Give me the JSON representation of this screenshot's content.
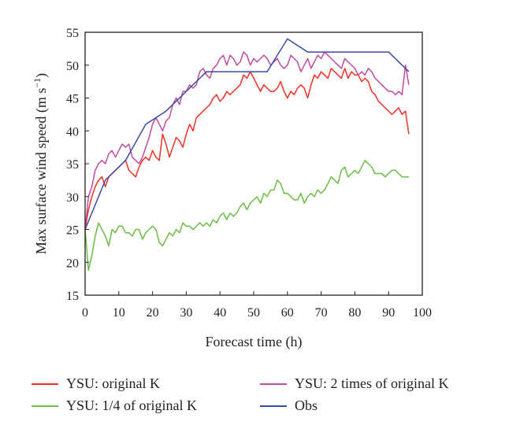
{
  "chart_data": {
    "type": "line",
    "xlabel": "Forecast time (h)",
    "ylabel": "Max surface wind speed (m s",
    "ylabel_sup": "−1",
    "ylabel_close": ")",
    "xlim": [
      0,
      100
    ],
    "ylim": [
      15,
      55
    ],
    "x_ticks": [
      "0",
      "10",
      "20",
      "30",
      "40",
      "50",
      "60",
      "70",
      "80",
      "90",
      "100"
    ],
    "y_ticks": [
      "15",
      "20",
      "25",
      "30",
      "35",
      "40",
      "45",
      "50",
      "55"
    ],
    "grid": false,
    "legend_position": "bottom",
    "series": [
      {
        "name": "YSU: original K",
        "color": "#ee3124",
        "x": [
          0,
          1,
          2,
          3,
          4,
          5,
          6,
          7,
          8,
          9,
          10,
          11,
          12,
          13,
          14,
          15,
          16,
          17,
          18,
          19,
          20,
          21,
          22,
          23,
          24,
          25,
          26,
          27,
          28,
          29,
          30,
          31,
          32,
          33,
          34,
          35,
          36,
          37,
          38,
          39,
          40,
          41,
          42,
          43,
          44,
          45,
          46,
          47,
          48,
          49,
          50,
          51,
          52,
          53,
          54,
          55,
          56,
          57,
          58,
          59,
          60,
          61,
          62,
          63,
          64,
          65,
          66,
          67,
          68,
          69,
          70,
          71,
          72,
          73,
          74,
          75,
          76,
          77,
          78,
          79,
          80,
          81,
          82,
          83,
          84,
          85,
          86,
          87,
          88,
          89,
          90,
          91,
          92,
          93,
          94,
          95,
          96
        ],
        "y": [
          25,
          28,
          30,
          31.5,
          32.5,
          33,
          31.5,
          33,
          33.5,
          34,
          34.5,
          35,
          35.5,
          34,
          33.5,
          33,
          34.5,
          35.5,
          36,
          35.5,
          37,
          36,
          35.5,
          39.5,
          38,
          36,
          37.5,
          39,
          38.5,
          37.5,
          39.5,
          41,
          40,
          42,
          42.5,
          43,
          43.5,
          44,
          45,
          45.5,
          44.5,
          45,
          46,
          45.5,
          46,
          46.5,
          47,
          48.5,
          48,
          49,
          48,
          47,
          46,
          47,
          46.5,
          46,
          46,
          46.5,
          47.5,
          46,
          45,
          46,
          45.5,
          46.5,
          47,
          46.5,
          45,
          47,
          48.5,
          48,
          49,
          48.5,
          48,
          49.5,
          49,
          48.5,
          48,
          49.5,
          48,
          49,
          48.5,
          48.5,
          47.5,
          48,
          47.5,
          46,
          45.5,
          44.5,
          44,
          43.5,
          43,
          42.5,
          43,
          43.5,
          42.5,
          43,
          39.5
        ]
      },
      {
        "name": "YSU: 1/4 of original K",
        "color": "#6cbd45",
        "x": [
          0,
          1,
          2,
          3,
          4,
          5,
          6,
          7,
          8,
          9,
          10,
          11,
          12,
          13,
          14,
          15,
          16,
          17,
          18,
          19,
          20,
          21,
          22,
          23,
          24,
          25,
          26,
          27,
          28,
          29,
          30,
          31,
          32,
          33,
          34,
          35,
          36,
          37,
          38,
          39,
          40,
          41,
          42,
          43,
          44,
          45,
          46,
          47,
          48,
          49,
          50,
          51,
          52,
          53,
          54,
          55,
          56,
          57,
          58,
          59,
          60,
          61,
          62,
          63,
          64,
          65,
          66,
          67,
          68,
          69,
          70,
          71,
          72,
          73,
          74,
          75,
          76,
          77,
          78,
          79,
          80,
          81,
          82,
          83,
          84,
          85,
          86,
          87,
          88,
          89,
          90,
          91,
          92,
          93,
          94,
          95,
          96
        ],
        "y": [
          25,
          18.8,
          21,
          24,
          26,
          25,
          24,
          22.5,
          25,
          24.5,
          25.5,
          25.5,
          24.5,
          24.5,
          24,
          25,
          25,
          23.5,
          24.5,
          25,
          25.5,
          25,
          23,
          22.5,
          23.5,
          24.5,
          24,
          25,
          24.5,
          26,
          25.5,
          25.5,
          25,
          25.5,
          26,
          25.5,
          26,
          25.5,
          26.5,
          26,
          27,
          27.5,
          26.5,
          27.5,
          27,
          27.5,
          28.5,
          29,
          28,
          29,
          29.5,
          30,
          29,
          30.5,
          30,
          31,
          31,
          32.5,
          32,
          30.5,
          30.5,
          30,
          29.5,
          29.5,
          30.5,
          29,
          30,
          30.5,
          30,
          31,
          30.5,
          31,
          32,
          33,
          32.5,
          32,
          34,
          34.5,
          33,
          33.5,
          34,
          33.5,
          34.5,
          35.5,
          35,
          34.5,
          33.5,
          33.5,
          33.5,
          33,
          33.5,
          34,
          34,
          33.5,
          33,
          33,
          33
        ]
      },
      {
        "name": "YSU: 2 times of original K",
        "color": "#c34b9d",
        "x": [
          0,
          1,
          2,
          3,
          4,
          5,
          6,
          7,
          8,
          9,
          10,
          11,
          12,
          13,
          14,
          15,
          16,
          17,
          18,
          19,
          20,
          21,
          22,
          23,
          24,
          25,
          26,
          27,
          28,
          29,
          30,
          31,
          32,
          33,
          34,
          35,
          36,
          37,
          38,
          39,
          40,
          41,
          42,
          43,
          44,
          45,
          46,
          47,
          48,
          49,
          50,
          51,
          52,
          53,
          54,
          55,
          56,
          57,
          58,
          59,
          60,
          61,
          62,
          63,
          64,
          65,
          66,
          67,
          68,
          69,
          70,
          71,
          72,
          73,
          74,
          75,
          76,
          77,
          78,
          79,
          80,
          81,
          82,
          83,
          84,
          85,
          86,
          87,
          88,
          89,
          90,
          91,
          92,
          93,
          94,
          95,
          96
        ],
        "y": [
          25,
          30,
          31.5,
          34,
          35,
          35.5,
          35,
          36.5,
          37,
          36,
          37,
          38,
          37.5,
          38,
          36,
          35.5,
          35,
          36,
          37.5,
          39,
          41,
          42,
          41,
          40,
          41.5,
          42,
          44,
          45,
          44,
          46,
          46,
          47,
          46.5,
          47,
          49,
          49.5,
          48.5,
          48,
          49.5,
          50,
          51,
          51.5,
          50,
          51.5,
          51,
          50,
          50.5,
          52,
          51.5,
          50,
          51,
          50.5,
          51,
          51.5,
          51,
          50,
          50.5,
          51,
          50,
          49.5,
          50,
          51.5,
          51,
          50.5,
          49,
          50,
          51,
          49.5,
          50.5,
          51.5,
          51,
          52,
          51.5,
          51,
          50.5,
          50,
          49.5,
          51,
          50.5,
          50,
          49.5,
          48.5,
          49,
          48.5,
          49.5,
          49,
          48,
          47.5,
          47,
          46.5,
          46,
          46,
          45.5,
          46,
          45.5,
          50,
          47
        ]
      },
      {
        "name": "Obs",
        "color": "#3b4ba3",
        "x": [
          0,
          6,
          12,
          18,
          24,
          30,
          36,
          42,
          48,
          54,
          60,
          66,
          72,
          78,
          84,
          90,
          96
        ],
        "y": [
          25,
          32.5,
          35.5,
          41,
          43,
          46,
          49,
          49,
          49,
          49,
          54,
          52,
          52,
          52,
          52,
          52,
          49
        ]
      }
    ]
  }
}
